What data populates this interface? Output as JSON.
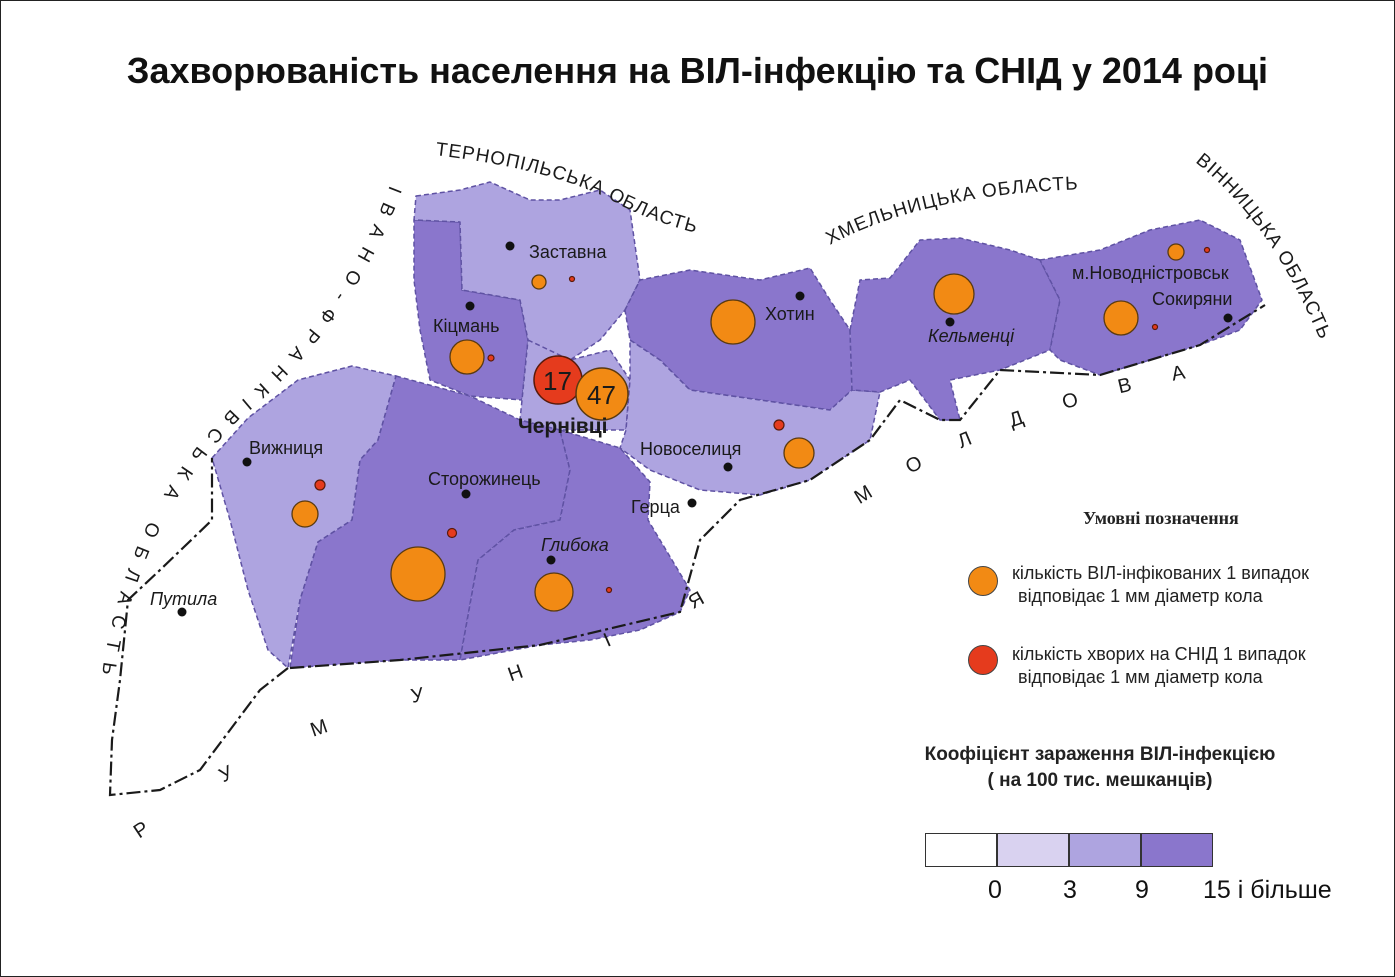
{
  "title": "Захворюваність населення на ВІЛ-інфекцію та СНІД у 2014 році",
  "colors": {
    "class0": "#ffffff",
    "class1": "#d9d2f0",
    "class2": "#aea4e0",
    "class3": "#8a76cc",
    "hiv": "#f28a14",
    "aids": "#e53b1d"
  },
  "neighbors": {
    "ternopil": "ТЕРНОПІЛЬСЬКА ОБЛАСТЬ",
    "khmelnytsky": "ХМЕЛЬНИЦЬКА ОБЛАСТЬ",
    "vinnytsia": "ВІННИЦЬКА ОБЛАСТЬ",
    "ivano": "ІВАНО-ФРАНКІВСЬКА ОБЛАСТЬ",
    "moldova": "МОЛДОВА",
    "romania": "РУМУНІЯ"
  },
  "places": {
    "zastavna": "Заставна",
    "kitsman": "Кіцмань",
    "khotyn": "Хотин",
    "kelmentsi": "Кельменці",
    "novodnistrovsk": "м.Новодністровськ",
    "sokyriany": "Сокиряни",
    "chernivtsi": "Чернівці",
    "novoselytsia": "Новоселиця",
    "vyzhnytsia": "Вижниця",
    "storozhynets": "Сторожинець",
    "hertsa": "Герца",
    "hlyboka": "Глибока",
    "putyla": "Путила"
  },
  "bubbles": {
    "chernivtsi_aids": "17",
    "chernivtsi_hiv": "47"
  },
  "legend": {
    "title": "Умовні позначення",
    "hiv_line1": "кількість ВІЛ-інфікованих 1 випадок",
    "hiv_line2": "відповідає 1 мм діаметр кола",
    "aids_line1": "кількість хворих на СНІД 1 випадок",
    "aids_line2": "відповідає 1 мм діаметр кола"
  },
  "coefficient": {
    "title_line1": "Коофіцієнт зараження ВІЛ-інфекцією",
    "title_line2": "( на 100 тис. мешканців)",
    "ticks": [
      "0",
      "3",
      "9",
      "15 і більше"
    ]
  }
}
